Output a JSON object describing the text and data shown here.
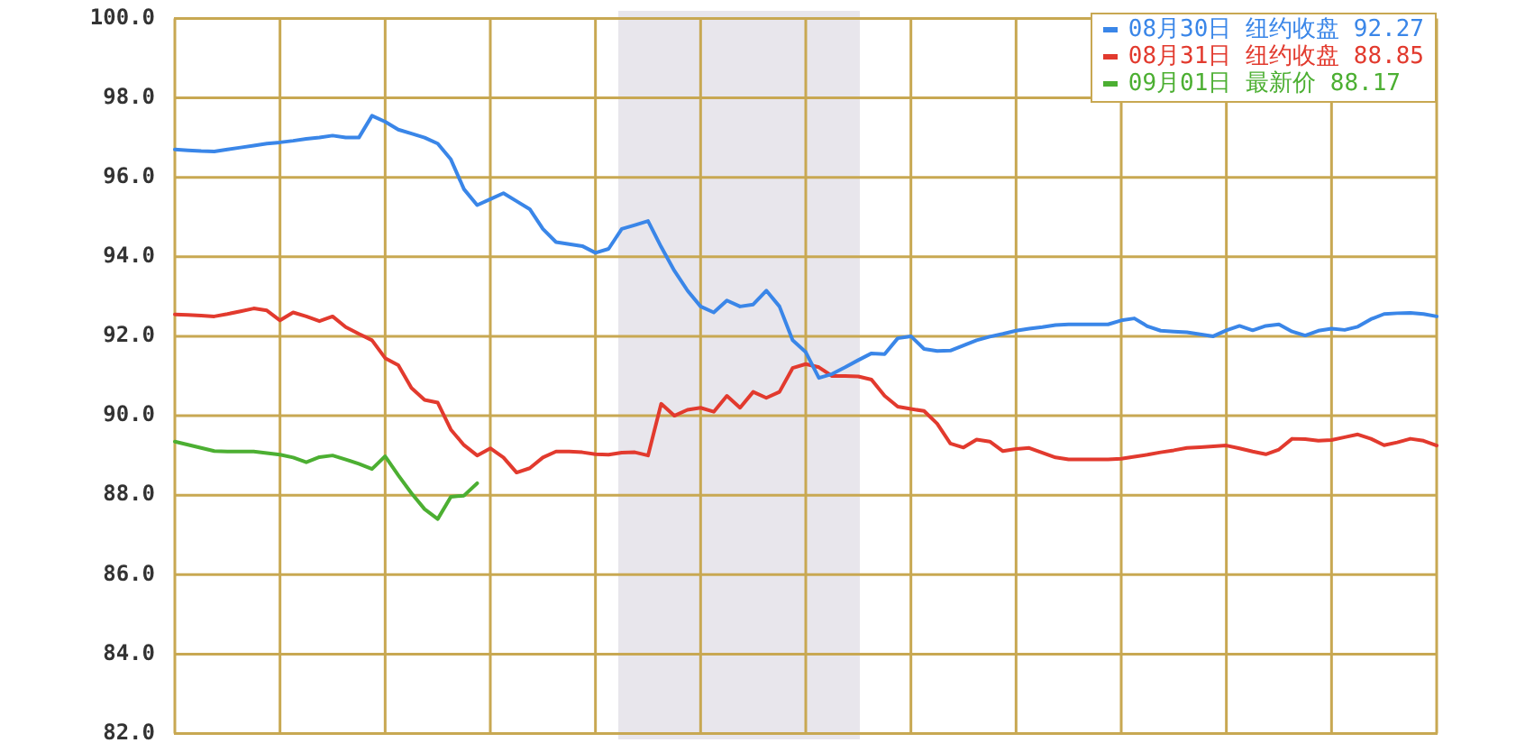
{
  "chart_data": {
    "type": "line",
    "categories": [
      null,
      null,
      null,
      null,
      null,
      null,
      null,
      null,
      null,
      null,
      null,
      null,
      null,
      null,
      null,
      null,
      null,
      null,
      null,
      null,
      null,
      null,
      null,
      null,
      null,
      null,
      null,
      null,
      null,
      null,
      null,
      null,
      null,
      null,
      null,
      null,
      null,
      null,
      null,
      null,
      null,
      null,
      null,
      null,
      null,
      null,
      null,
      null,
      null,
      null,
      null,
      null,
      null,
      null,
      null,
      null,
      null,
      null,
      null,
      null,
      null,
      null,
      null,
      null,
      null,
      null,
      null,
      null,
      null,
      null,
      null,
      null,
      null,
      null,
      null,
      null,
      null,
      null,
      null,
      null,
      null,
      null,
      null,
      null,
      null,
      null,
      null,
      null,
      null,
      null,
      null,
      null,
      null,
      null,
      null,
      null,
      null
    ],
    "ylim": [
      82,
      100
    ],
    "yticks": [
      {
        "value": 82,
        "label": "82.0"
      },
      {
        "value": 84,
        "label": "84.0"
      },
      {
        "value": 86,
        "label": "86.0"
      },
      {
        "value": 88,
        "label": "88.0"
      },
      {
        "value": 90,
        "label": "90.0"
      },
      {
        "value": 92,
        "label": "92.0"
      },
      {
        "value": 94,
        "label": "94.0"
      },
      {
        "value": 96,
        "label": "96.0"
      },
      {
        "value": 98,
        "label": "98.0"
      },
      {
        "value": 100,
        "label": "100.0"
      }
    ],
    "grid": true,
    "legend": "top right",
    "marker": "none",
    "line_style": "solid",
    "series": [
      {
        "name": "08月30日 纽约收盘 92.27",
        "color": "#3a86e8",
        "values": [
          96.7,
          96.68,
          96.66,
          96.65,
          96.7,
          96.75,
          96.8,
          96.85,
          96.88,
          96.92,
          96.97,
          97.0,
          97.05,
          97.0,
          97.0,
          97.55,
          97.4,
          97.2,
          97.1,
          97.0,
          96.85,
          96.45,
          95.7,
          95.3,
          95.45,
          95.6,
          95.4,
          95.2,
          94.7,
          94.37,
          94.32,
          94.27,
          94.1,
          94.2,
          94.7,
          94.8,
          94.9,
          94.25,
          93.65,
          93.15,
          92.75,
          92.6,
          92.9,
          92.75,
          92.8,
          93.15,
          92.75,
          91.9,
          91.6,
          90.95,
          91.05,
          91.22,
          91.4,
          91.57,
          91.55,
          91.95,
          92.0,
          91.68,
          91.63,
          91.64,
          91.77,
          91.9,
          91.99,
          92.06,
          92.14,
          92.19,
          92.23,
          92.28,
          92.3,
          92.3,
          92.3,
          92.3,
          92.4,
          92.45,
          92.25,
          92.14,
          92.12,
          92.1,
          92.05,
          92.0,
          92.15,
          92.26,
          92.15,
          92.26,
          92.3,
          92.12,
          92.02,
          92.14,
          92.19,
          92.16,
          92.24,
          92.43,
          92.56,
          92.58,
          92.59,
          92.56,
          92.5
        ]
      },
      {
        "name": "08月31日 纽约收盘 88.85",
        "color": "#e23a2e",
        "values": [
          92.55,
          92.54,
          92.52,
          92.5,
          92.56,
          92.63,
          92.7,
          92.65,
          92.4,
          92.6,
          92.5,
          92.38,
          92.5,
          92.23,
          92.06,
          91.9,
          91.45,
          91.27,
          90.7,
          90.4,
          90.33,
          89.65,
          89.26,
          89.0,
          89.18,
          88.95,
          88.57,
          88.68,
          88.95,
          89.1,
          89.1,
          89.08,
          89.03,
          89.02,
          89.07,
          89.08,
          89.0,
          90.3,
          90.0,
          90.15,
          90.2,
          90.1,
          90.5,
          90.2,
          90.6,
          90.45,
          90.6,
          91.2,
          91.3,
          91.22,
          91.0,
          91.0,
          90.99,
          90.91,
          90.5,
          90.23,
          90.17,
          90.12,
          89.8,
          89.3,
          89.2,
          89.4,
          89.35,
          89.11,
          89.16,
          89.19,
          89.07,
          88.95,
          88.9,
          88.9,
          88.9,
          88.9,
          88.92,
          88.97,
          89.02,
          89.08,
          89.13,
          89.19,
          89.21,
          89.23,
          89.25,
          89.18,
          89.1,
          89.03,
          89.15,
          89.42,
          89.41,
          89.37,
          89.39,
          89.46,
          89.53,
          89.42,
          89.26,
          89.33,
          89.42,
          89.37,
          89.25
        ]
      },
      {
        "name": "09月01日 最新价 88.17",
        "color": "#4caf32",
        "values": [
          89.35,
          89.27,
          89.19,
          89.11,
          89.1,
          89.1,
          89.1,
          89.06,
          89.02,
          88.95,
          88.83,
          88.96,
          89.0,
          88.9,
          88.79,
          88.66,
          88.98,
          88.5,
          88.05,
          87.65,
          87.4,
          87.96,
          87.99,
          88.3,
          null,
          null,
          null,
          null,
          null,
          null,
          null,
          null,
          null,
          null,
          null,
          null,
          null,
          null,
          null,
          null,
          null,
          null,
          null,
          null,
          null,
          null,
          null,
          null,
          null,
          null,
          null,
          null,
          null,
          null,
          null,
          null,
          null,
          null,
          null,
          null,
          null,
          null,
          null,
          null,
          null,
          null,
          null,
          null,
          null,
          null,
          null,
          null,
          null,
          null,
          null,
          null,
          null,
          null,
          null,
          null,
          null,
          null,
          null,
          null,
          null,
          null,
          null,
          null,
          null,
          null,
          null,
          null,
          null,
          null,
          null,
          null,
          null
        ]
      }
    ]
  }
}
